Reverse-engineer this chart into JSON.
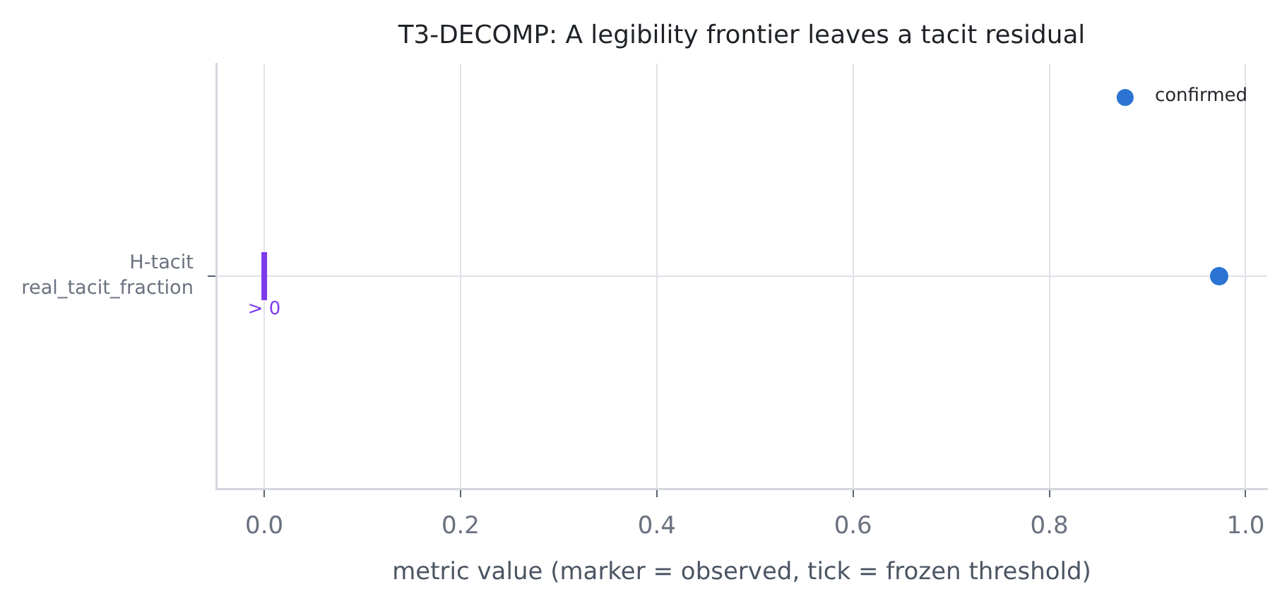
{
  "chart_data": {
    "type": "scatter",
    "orientation": "horizontal",
    "title": "T3-DECOMP: A legibility frontier leaves a tacit residual",
    "xlabel": "metric value (marker = observed, tick = frozen threshold)",
    "categories": [
      "H-tacit\nreal_tacit_fraction"
    ],
    "series": [
      {
        "name": "confirmed",
        "color": "#2b74d3",
        "values": [
          0.973
        ]
      }
    ],
    "xlim": [
      -0.049,
      1.022
    ],
    "xticks": [
      {
        "value": 0,
        "label": "0.0"
      },
      0.2,
      0.4,
      0.6,
      0.8,
      {
        "value": 1,
        "label": "1.0"
      }
    ],
    "ref_lines": [
      {
        "axis": "x",
        "value": 0,
        "label": "> 0",
        "color": "#7c3aed"
      }
    ],
    "grid": true,
    "legend": "top right",
    "marker": "circle"
  }
}
